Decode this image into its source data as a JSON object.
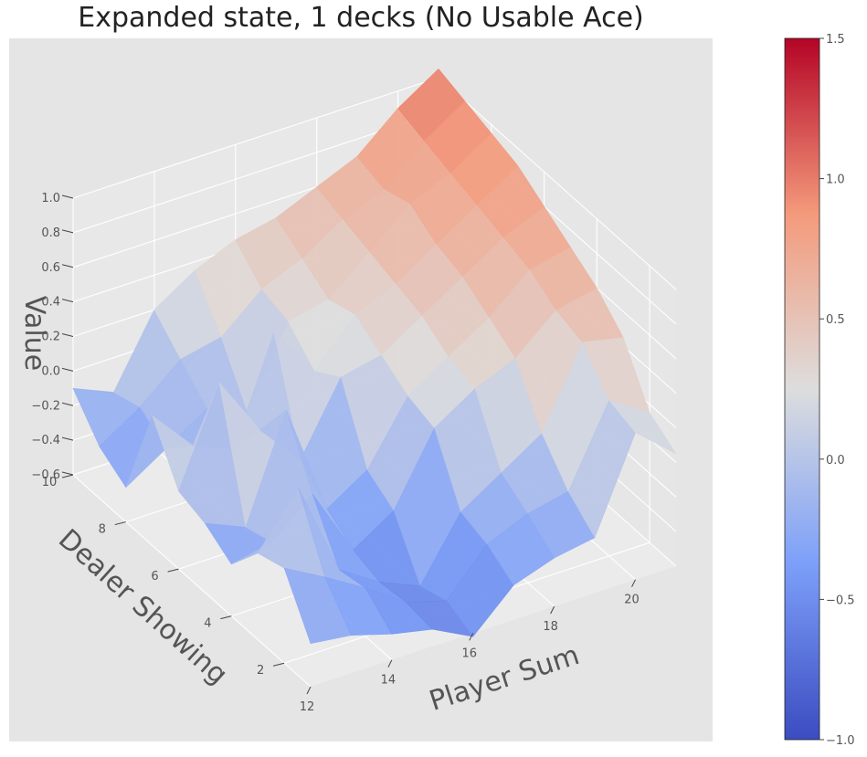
{
  "chart_data": {
    "type": "surface3d",
    "title": "Expanded state, 1 decks (No Usable Ace)",
    "xlabel": "Player Sum",
    "ylabel": "Dealer Showing",
    "zlabel": "Value",
    "xlim": [
      12,
      21
    ],
    "ylim": [
      1,
      10
    ],
    "zlim": [
      -0.6,
      1.0
    ],
    "x_ticks": [
      12,
      14,
      16,
      18,
      20
    ],
    "y_ticks": [
      2,
      4,
      6,
      8,
      10
    ],
    "z_ticks": [
      "−0.6",
      "−0.4",
      "−0.2",
      "0.0",
      "0.2",
      "0.4",
      "0.6",
      "0.8",
      "1.0"
    ],
    "x": [
      12,
      13,
      14,
      15,
      16,
      17,
      18,
      19,
      20,
      21
    ],
    "y": [
      1,
      2,
      3,
      4,
      5,
      6,
      7,
      8,
      9,
      10
    ],
    "z": [
      [
        -0.35,
        -0.38,
        -0.45,
        -0.5,
        -0.62,
        -0.4,
        -0.32,
        -0.28,
        0.25,
        0.05
      ],
      [
        -0.05,
        -0.18,
        -0.32,
        -0.48,
        -0.55,
        -0.3,
        -0.2,
        -0.15,
        0.3,
        0.15
      ],
      [
        -0.1,
        0.2,
        -0.35,
        -0.5,
        -0.6,
        -0.25,
        -0.1,
        0.05,
        0.5,
        0.45
      ],
      [
        -0.3,
        -0.25,
        -0.05,
        -0.45,
        -0.3,
        0.1,
        0.25,
        0.35,
        0.55,
        0.6
      ],
      [
        -0.2,
        -0.3,
        0.3,
        -0.35,
        -0.2,
        0.15,
        0.3,
        0.45,
        0.65,
        0.7
      ],
      [
        -0.15,
        0.4,
        0.05,
        -0.2,
        0.2,
        0.25,
        0.4,
        0.55,
        0.7,
        0.8
      ],
      [
        0.15,
        -0.1,
        -0.2,
        0.4,
        0.1,
        0.35,
        0.45,
        0.6,
        0.75,
        0.9
      ],
      [
        -0.4,
        -0.25,
        -0.1,
        -0.2,
        0.25,
        0.3,
        0.5,
        0.7,
        0.8,
        0.95
      ],
      [
        -0.3,
        -0.15,
        0.05,
        0.1,
        0.3,
        0.4,
        0.55,
        0.65,
        0.85,
        1.0
      ],
      [
        -0.1,
        -0.2,
        0.2,
        0.35,
        0.45,
        0.5,
        0.6,
        0.7,
        0.9,
        1.05
      ]
    ],
    "colormap": "coolwarm",
    "colorbar": {
      "range": [
        -1.0,
        1.5
      ],
      "ticks": [
        "−1.0",
        "−0.5",
        "0.0",
        "0.5",
        "1.0",
        "1.5"
      ]
    },
    "grid": true,
    "colors": {
      "panel_background": "#e5e5e5",
      "grid": "#ffffff",
      "text": "#555555",
      "title_text": "#222222"
    }
  }
}
